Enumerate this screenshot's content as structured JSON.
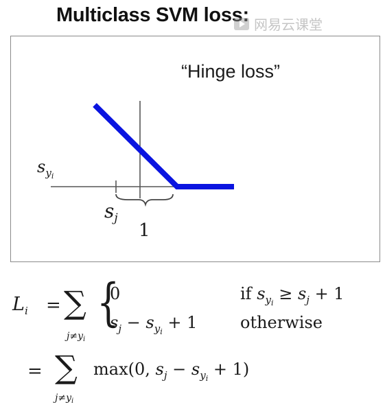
{
  "title": "Multiclass SVM loss:",
  "watermark": {
    "text": "网易云课堂"
  },
  "plot": {
    "label": "“Hinge loss”",
    "y_axis_label": {
      "base": "s",
      "sub": "y",
      "subsub": "i"
    },
    "x_axis_label": {
      "base": "s",
      "sub": "j"
    },
    "margin_label": "1",
    "line_color": "#0a14e0"
  },
  "formula": {
    "lhs": {
      "base": "L",
      "sub": "i"
    },
    "eq": "=",
    "sum_index": "j≠y",
    "sum_index_sub": "i",
    "case1": {
      "value": "0",
      "cond_prefix": "if",
      "cond_s": "s",
      "cond_sub": "y",
      "cond_subsub": "i",
      "cond_rel": "≥",
      "cond_rhs_s": "s",
      "cond_rhs_sub": "j",
      "cond_plus": "+ 1"
    },
    "case2": {
      "s1": "s",
      "s1_sub": "j",
      "minus": "−",
      "s2": "s",
      "s2_sub": "y",
      "s2_subsub": "i",
      "plus": "+ 1",
      "cond": "otherwise"
    },
    "line2": {
      "eq": "=",
      "fn_open": "max(0,",
      "s1": "s",
      "s1_sub": "j",
      "minus": "−",
      "s2": "s",
      "s2_sub": "y",
      "s2_subsub": "i",
      "tail": "+ 1)"
    }
  }
}
